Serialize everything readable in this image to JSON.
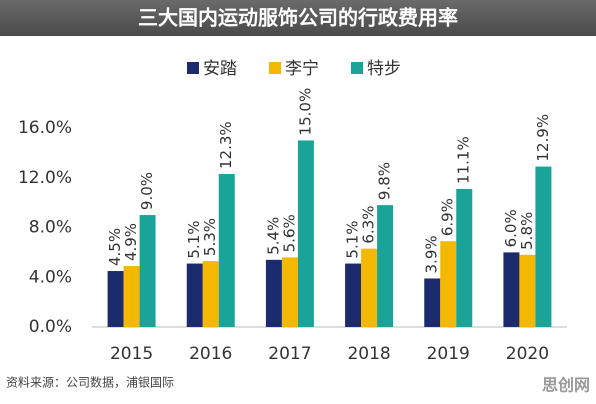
{
  "chart_data": {
    "type": "bar",
    "title": "三大国内运动服饰公司的行政费用率",
    "categories": [
      "2015",
      "2016",
      "2017",
      "2018",
      "2019",
      "2020"
    ],
    "series": [
      {
        "name": "安踏",
        "color": "#1c2a6e",
        "values": [
          4.5,
          5.1,
          5.4,
          5.1,
          3.9,
          6.0
        ],
        "value_labels": [
          "4.5%",
          "5.1%",
          "5.4%",
          "5.1%",
          "3.9%",
          "6.0%"
        ]
      },
      {
        "name": "李宁",
        "color": "#f5b800",
        "values": [
          4.9,
          5.3,
          5.6,
          6.3,
          6.9,
          5.8
        ],
        "value_labels": [
          "4.9%",
          "5.3%",
          "5.6%",
          "6.3%",
          "6.9%",
          "5.8%"
        ]
      },
      {
        "name": "特步",
        "color": "#1aa399",
        "values": [
          9.0,
          12.3,
          15.0,
          9.8,
          11.1,
          12.9
        ],
        "value_labels": [
          "9.0%",
          "12.3%",
          "15.0%",
          "9.8%",
          "11.1%",
          "12.9%"
        ]
      }
    ],
    "ylim": [
      0,
      16
    ],
    "yticks": [
      {
        "value": 0,
        "label": "0.0%"
      },
      {
        "value": 4,
        "label": "4.0%"
      },
      {
        "value": 8,
        "label": "8.0%"
      },
      {
        "value": 12,
        "label": "12.0%"
      },
      {
        "value": 16,
        "label": "16.0%"
      }
    ],
    "legend": "top",
    "source": "资料来源：公司数据，浦银国际",
    "watermark": "思创网"
  }
}
